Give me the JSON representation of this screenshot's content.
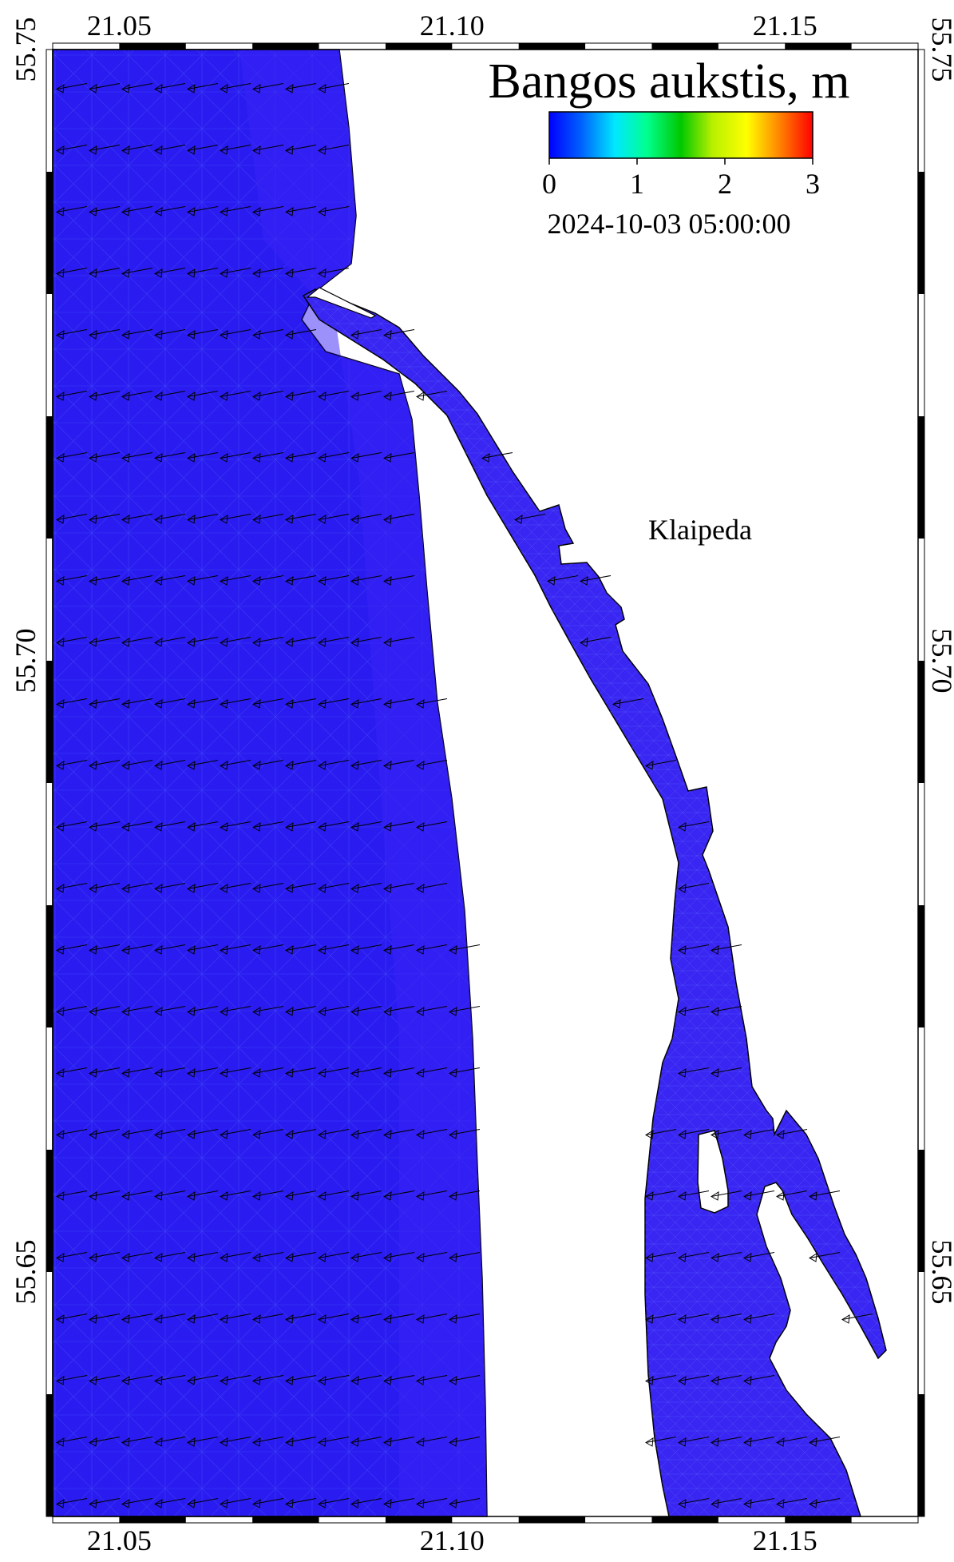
{
  "map": {
    "lon_range": [
      21.04,
      21.17
    ],
    "lat_range": [
      55.63,
      55.75
    ],
    "lon_ticks": [
      {
        "value": 21.05,
        "label": "21.05"
      },
      {
        "value": 21.1,
        "label": "21.10"
      },
      {
        "value": 21.15,
        "label": "21.15"
      }
    ],
    "lat_ticks": [
      {
        "value": 55.75,
        "label": "55.75"
      },
      {
        "value": 55.7,
        "label": "55.70"
      },
      {
        "value": 55.65,
        "label": "55.65"
      }
    ],
    "water_color": "#2a1cf0",
    "land_color": "#ffffff",
    "place_label": "Klaipeda",
    "wave_direction": "from east toward west-southwest"
  },
  "legend": {
    "title": "Bangos aukstis, m",
    "range": [
      0,
      3
    ],
    "ticks": [
      "0",
      "1",
      "2",
      "3"
    ],
    "colors": [
      "#0000ff",
      "#0088ff",
      "#00ffff",
      "#00ff80",
      "#00c800",
      "#c8ff00",
      "#ffff00",
      "#ff8000",
      "#ff0000"
    ],
    "timestamp": "2024-10-03  05:00:00"
  }
}
